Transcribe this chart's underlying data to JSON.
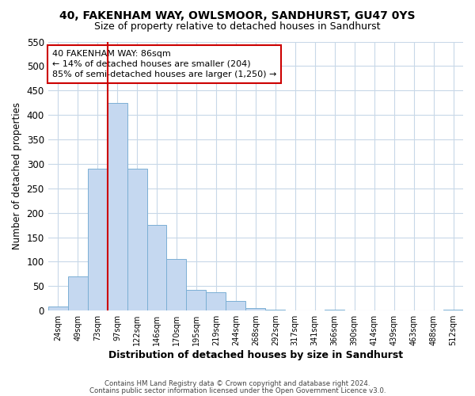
{
  "title": "40, FAKENHAM WAY, OWLSMOOR, SANDHURST, GU47 0YS",
  "subtitle": "Size of property relative to detached houses in Sandhurst",
  "bar_labels": [
    "24sqm",
    "49sqm",
    "73sqm",
    "97sqm",
    "122sqm",
    "146sqm",
    "170sqm",
    "195sqm",
    "219sqm",
    "244sqm",
    "268sqm",
    "292sqm",
    "317sqm",
    "341sqm",
    "366sqm",
    "390sqm",
    "414sqm",
    "439sqm",
    "463sqm",
    "488sqm",
    "512sqm"
  ],
  "bar_heights": [
    8,
    70,
    290,
    425,
    290,
    175,
    105,
    43,
    38,
    20,
    5,
    2,
    0,
    0,
    2,
    0,
    0,
    0,
    0,
    0,
    2
  ],
  "bar_color": "#c5d8f0",
  "bar_edge_color": "#7bafd4",
  "ylim": [
    0,
    550
  ],
  "yticks": [
    0,
    50,
    100,
    150,
    200,
    250,
    300,
    350,
    400,
    450,
    500,
    550
  ],
  "ylabel": "Number of detached properties",
  "xlabel": "Distribution of detached houses by size in Sandhurst",
  "vline_x_index": 3,
  "vline_color": "#cc0000",
  "annotation_title": "40 FAKENHAM WAY: 86sqm",
  "annotation_line1": "← 14% of detached houses are smaller (204)",
  "annotation_line2": "85% of semi-detached houses are larger (1,250) →",
  "annotation_box_color": "#ffffff",
  "annotation_box_edge": "#cc0000",
  "footer1": "Contains HM Land Registry data © Crown copyright and database right 2024.",
  "footer2": "Contains public sector information licensed under the Open Government Licence v3.0.",
  "background_color": "#ffffff",
  "grid_color": "#c8d8e8"
}
